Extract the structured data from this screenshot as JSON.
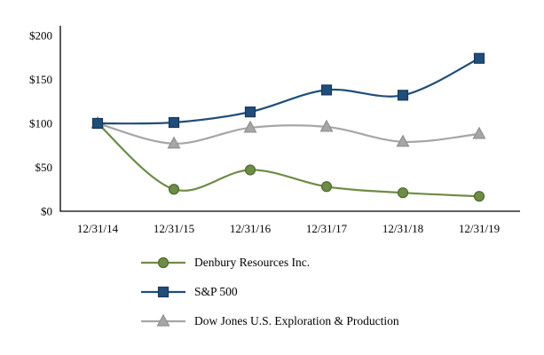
{
  "chart_data": {
    "type": "line",
    "title": "",
    "xlabel": "",
    "ylabel": "",
    "x": [
      "12/31/14",
      "12/31/15",
      "12/31/16",
      "12/31/17",
      "12/31/18",
      "12/31/19"
    ],
    "y_ticks": [
      {
        "label": "$0",
        "value": 0
      },
      {
        "label": "$50",
        "value": 50
      },
      {
        "label": "$100",
        "value": 100
      },
      {
        "label": "$150",
        "value": 150
      },
      {
        "label": "$200",
        "value": 200
      }
    ],
    "ylim": [
      0,
      200
    ],
    "grid": false,
    "legend_position": "bottom-left",
    "draw_order": [
      0,
      2,
      1
    ],
    "series": [
      {
        "name": "Denbury Resources Inc.",
        "marker": "circle",
        "color": "#6e8c46",
        "marker_stroke": "#4c6b2f",
        "values": [
          100,
          25,
          47,
          28,
          21,
          17
        ]
      },
      {
        "name": "S&P 500",
        "marker": "square",
        "color": "#1f4e79",
        "marker_stroke": "#17375e",
        "values": [
          100,
          101,
          113,
          138,
          132,
          174
        ]
      },
      {
        "name": "Dow Jones U.S. Exploration & Production",
        "marker": "triangle",
        "color": "#a6a6a6",
        "marker_stroke": "#8f8f8f",
        "values": [
          100,
          77,
          95,
          96,
          79,
          88
        ]
      }
    ]
  }
}
